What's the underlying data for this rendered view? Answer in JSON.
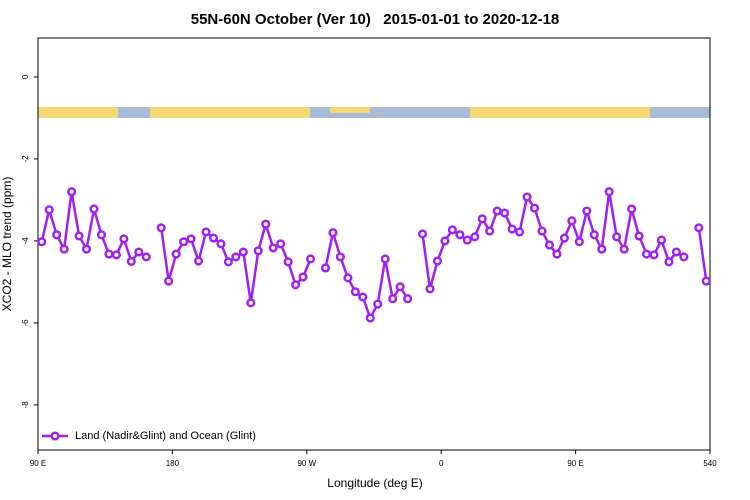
{
  "chart_data": {
    "type": "line",
    "title": "55N-60N October (Ver 10)   2015-01-01 to 2020-12-18",
    "x_label": "Longitude (deg E)",
    "y_label": "XCO2 - MLO trend (ppm)",
    "xlim": [
      90,
      540
    ],
    "ylim": [
      -9.1,
      0.95
    ],
    "xticks": [
      {
        "value": 90,
        "label": "90 E"
      },
      180,
      {
        "value": 270,
        "label": "90 W"
      },
      {
        "value": 360,
        "label": "0"
      },
      {
        "value": 450,
        "label": "90 E"
      },
      540
    ],
    "yticks": [
      0,
      -2,
      -4,
      -6,
      -8
    ],
    "legend": "bottom-left",
    "x": [
      92.5,
      97.5,
      102.5,
      107.5,
      112.5,
      117.5,
      122.5,
      127.5,
      132.5,
      137.5,
      142.5,
      147.5,
      152.5,
      157.5,
      162.5,
      167.5,
      172.5,
      177.5,
      182.5,
      187.5,
      192.5,
      197.5,
      202.5,
      207.5,
      212.5,
      217.5,
      222.5,
      227.5,
      232.5,
      237.5,
      242.5,
      247.5,
      252.5,
      257.5,
      262.5,
      267.5,
      272.5,
      277.5,
      282.5,
      287.5,
      292.5,
      297.5,
      302.5,
      307.5,
      312.5,
      317.5,
      322.5,
      327.5,
      332.5,
      337.5,
      342.5,
      347.5,
      352.5,
      357.5,
      362.5,
      367.5,
      372.5,
      377.5,
      382.5,
      387.5,
      392.5,
      397.5,
      402.5,
      407.5,
      412.5,
      417.5,
      422.5,
      427.5,
      432.5,
      437.5,
      442.5,
      447.5,
      452.5,
      457.5,
      462.5,
      467.5,
      472.5,
      477.5,
      482.5,
      487.5,
      492.5,
      497.5,
      502.5,
      507.5,
      512.5,
      517.5,
      522.5,
      527.5,
      532.5,
      537.5
    ],
    "series": [
      {
        "name": "Land (Nadir&Glint) and Ocean (Glint)",
        "color": "#a020f0",
        "values": [
          -4.02,
          -3.24,
          -3.85,
          -4.2,
          -2.8,
          -3.88,
          -4.2,
          -3.22,
          -3.85,
          -4.32,
          -4.34,
          -3.95,
          -4.5,
          -4.27,
          -4.39,
          null,
          -3.68,
          -4.98,
          -4.32,
          -4.02,
          -3.95,
          -4.49,
          -3.78,
          -3.93,
          -4.07,
          -4.51,
          -4.39,
          -4.27,
          -5.51,
          -4.24,
          -3.59,
          -4.17,
          -4.07,
          -4.51,
          -5.07,
          -4.88,
          -4.44,
          null,
          -4.66,
          -3.8,
          -4.39,
          -4.9,
          -5.24,
          -5.37,
          -5.88,
          -5.54,
          -4.44,
          -5.41,
          -5.12,
          -5.41,
          null,
          -3.83,
          -5.17,
          -4.49,
          -4.0,
          -3.73,
          -3.85,
          -3.98,
          -3.9,
          -3.46,
          -3.76,
          -3.27,
          -3.32,
          -3.71,
          -3.78,
          -2.93,
          -3.2,
          -3.76,
          -4.1,
          -4.32,
          -3.93,
          -3.51,
          -4.02,
          -3.27,
          -3.85,
          -4.2,
          -2.8,
          -3.9,
          -4.2,
          -3.22,
          -3.88,
          -4.32,
          -4.34,
          -3.98,
          -4.51,
          -4.27,
          -4.39,
          null,
          -3.68,
          -4.98
        ]
      }
    ]
  }
}
